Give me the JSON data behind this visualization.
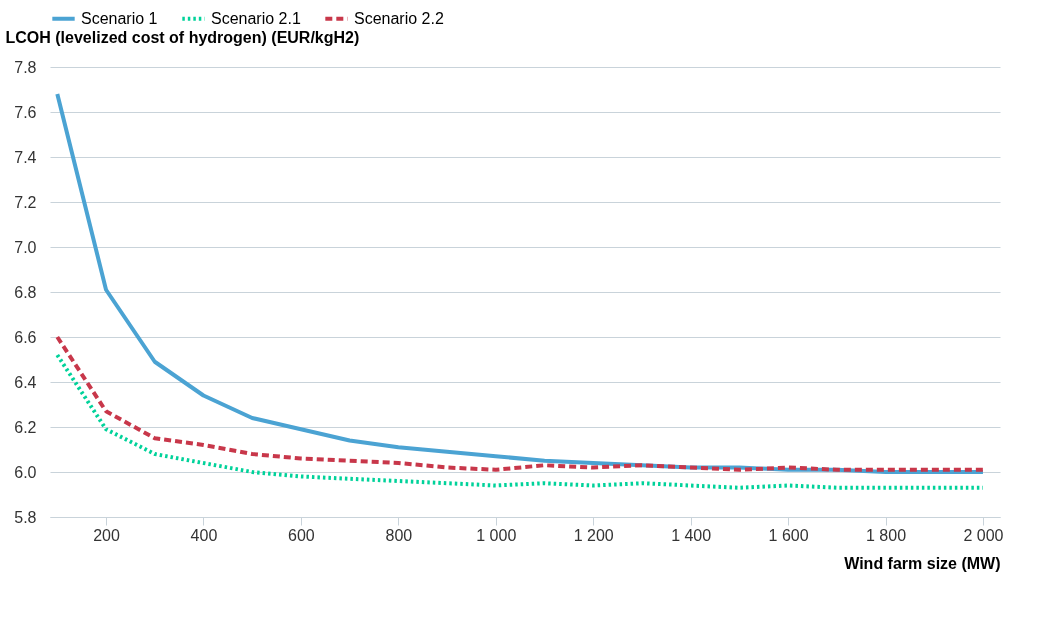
{
  "chart_data": {
    "type": "line",
    "xlabel": "Wind farm size (MW)",
    "ylabel": "LCOH (levelized cost of hydrogen) (EUR/kgH2)",
    "x": [
      100,
      200,
      300,
      400,
      500,
      600,
      700,
      800,
      900,
      1000,
      1100,
      1200,
      1300,
      1400,
      1500,
      1600,
      1700,
      1800,
      1900,
      2000
    ],
    "series": [
      {
        "name": "Scenario 1",
        "color": "#4ba3d3",
        "line_style": "solid",
        "values": [
          7.68,
          6.81,
          6.49,
          6.34,
          6.24,
          6.19,
          6.14,
          6.11,
          6.09,
          6.07,
          6.05,
          6.04,
          6.03,
          6.02,
          6.02,
          6.01,
          6.01,
          6.0,
          6.0,
          6.0
        ]
      },
      {
        "name": "Scenario 2.1",
        "color": "#00d29a",
        "line_style": "dotted",
        "values": [
          6.52,
          6.19,
          6.08,
          6.04,
          6.0,
          5.98,
          5.97,
          5.96,
          5.95,
          5.94,
          5.95,
          5.94,
          5.95,
          5.94,
          5.93,
          5.94,
          5.93,
          5.93,
          5.93,
          5.93
        ]
      },
      {
        "name": "Scenario 2.2",
        "color": "#c8374a",
        "line_style": "dashed",
        "values": [
          6.6,
          6.27,
          6.15,
          6.12,
          6.08,
          6.06,
          6.05,
          6.04,
          6.02,
          6.01,
          6.03,
          6.02,
          6.03,
          6.02,
          6.01,
          6.02,
          6.01,
          6.01,
          6.01,
          6.01
        ]
      }
    ],
    "xlim": [
      85,
      2035
    ],
    "ylim": [
      5.8,
      7.8
    ],
    "xticks": [
      200,
      400,
      600,
      800,
      {
        "value": 1000,
        "label": "1 000"
      },
      {
        "value": 1200,
        "label": "1 200"
      },
      {
        "value": 1400,
        "label": "1 400"
      },
      {
        "value": 1600,
        "label": "1 600"
      },
      {
        "value": 1800,
        "label": "1 800"
      },
      {
        "value": 2000,
        "label": "2 000"
      }
    ],
    "yticks": [
      5.8,
      {
        "value": 6,
        "label": "6.0"
      },
      6.2,
      6.4,
      6.6,
      6.8,
      {
        "value": 7,
        "label": "7.0"
      },
      7.2,
      7.4,
      7.6,
      7.8
    ],
    "grid": "y",
    "legend": "top left"
  }
}
